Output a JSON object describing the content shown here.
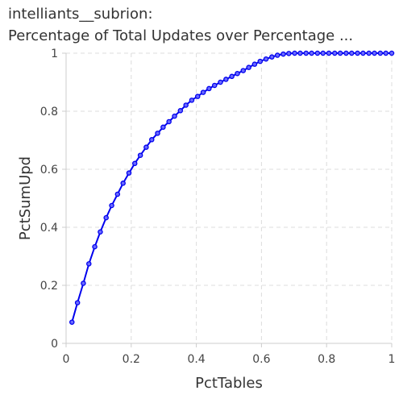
{
  "chart_data": {
    "type": "line",
    "title_lines": [
      "intelliants__subrion:",
      "Percentage of Total Updates over Percentage ..."
    ],
    "xlabel": "PctTables",
    "ylabel": "PctSumUpd",
    "xlim": [
      0,
      1
    ],
    "ylim": [
      0,
      1
    ],
    "xticks": [
      0,
      0.2,
      0.4,
      0.6,
      0.8,
      1
    ],
    "yticks": [
      0,
      0.2,
      0.4,
      0.6,
      0.8,
      1
    ],
    "xtick_labels": [
      "0",
      "0.2",
      "0.4",
      "0.6",
      "0.8",
      "1"
    ],
    "ytick_labels": [
      "0",
      "0.2",
      "0.4",
      "0.6",
      "0.8",
      "1"
    ],
    "grid": true,
    "legend": "none",
    "series": [
      {
        "color": "#0000ee",
        "x": [
          0.018,
          0.035,
          0.053,
          0.07,
          0.088,
          0.105,
          0.123,
          0.14,
          0.158,
          0.175,
          0.193,
          0.211,
          0.228,
          0.246,
          0.263,
          0.281,
          0.298,
          0.316,
          0.333,
          0.351,
          0.368,
          0.386,
          0.404,
          0.421,
          0.439,
          0.456,
          0.474,
          0.491,
          0.509,
          0.526,
          0.544,
          0.561,
          0.579,
          0.596,
          0.614,
          0.632,
          0.649,
          0.667,
          0.684,
          0.702,
          0.719,
          0.737,
          0.754,
          0.772,
          0.789,
          0.807,
          0.825,
          0.842,
          0.86,
          0.877,
          0.895,
          0.912,
          0.93,
          0.947,
          0.965,
          0.982,
          1.0
        ],
        "y": [
          0.073,
          0.14,
          0.207,
          0.274,
          0.333,
          0.384,
          0.433,
          0.475,
          0.514,
          0.552,
          0.587,
          0.62,
          0.648,
          0.676,
          0.702,
          0.724,
          0.745,
          0.764,
          0.783,
          0.802,
          0.821,
          0.838,
          0.851,
          0.865,
          0.878,
          0.889,
          0.9,
          0.91,
          0.92,
          0.93,
          0.94,
          0.951,
          0.962,
          0.972,
          0.98,
          0.987,
          0.993,
          0.997,
          0.999,
          1,
          1,
          1,
          1,
          1,
          1,
          1,
          1,
          1,
          1,
          1,
          1,
          1,
          1,
          1,
          1,
          1,
          1
        ]
      }
    ]
  }
}
